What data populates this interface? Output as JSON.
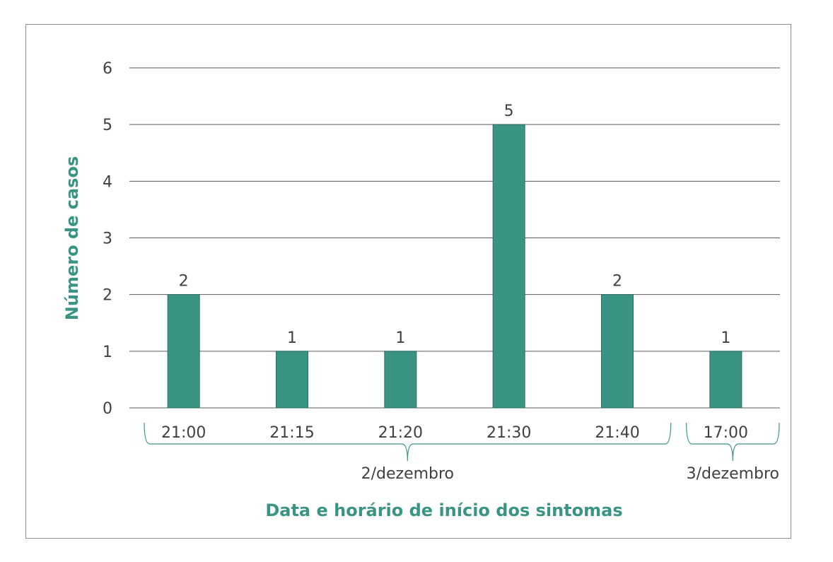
{
  "chart_data": {
    "type": "bar",
    "title": "",
    "xlabel": "Data e horário de início dos sintomas",
    "ylabel": "Número de casos",
    "categories": [
      "21:00",
      "21:15",
      "21:20",
      "21:30",
      "21:40",
      "17:00"
    ],
    "values": [
      2,
      1,
      1,
      5,
      2,
      1
    ],
    "data_labels": [
      "2",
      "1",
      "1",
      "5",
      "2",
      "1"
    ],
    "ylim": [
      0,
      6
    ],
    "yticks": [
      "0",
      "1",
      "2",
      "3",
      "4",
      "5",
      "6"
    ],
    "grid": true,
    "groups": [
      {
        "label": "2/dezembro",
        "from": 0,
        "to": 4
      },
      {
        "label": "3/dezembro",
        "from": 5,
        "to": 5
      }
    ],
    "colors": {
      "bar": "#3a9484",
      "bar_edge": "#2c6e63",
      "axis_title": "#3a9484",
      "grid": "#5a5a5a"
    }
  }
}
